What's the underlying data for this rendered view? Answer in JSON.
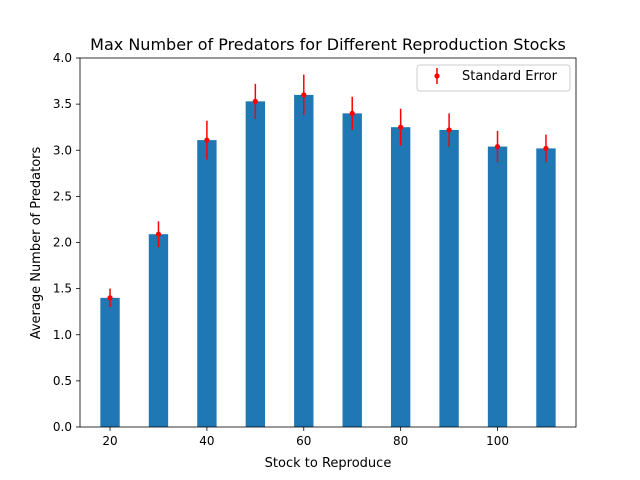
{
  "chart_data": {
    "type": "bar",
    "title": "Max Number of Predators for Different Reproduction Stocks",
    "xlabel": "Stock to Reproduce",
    "ylabel": "Average Number of Predators",
    "x": [
      20,
      30,
      40,
      50,
      60,
      70,
      80,
      90,
      100,
      110
    ],
    "values": [
      1.4,
      2.09,
      3.11,
      3.53,
      3.6,
      3.4,
      3.25,
      3.22,
      3.04,
      3.02
    ],
    "errors": [
      0.1,
      0.14,
      0.21,
      0.19,
      0.22,
      0.18,
      0.2,
      0.18,
      0.17,
      0.15
    ],
    "bar_width": 4,
    "xlim": [
      13.8,
      116.2
    ],
    "ylim": [
      0,
      4.0
    ],
    "xticks": [
      20,
      40,
      60,
      80,
      100
    ],
    "yticks": [
      0.0,
      0.5,
      1.0,
      1.5,
      2.0,
      2.5,
      3.0,
      3.5,
      4.0
    ],
    "xtick_labels": [
      "20",
      "40",
      "60",
      "80",
      "100"
    ],
    "ytick_labels": [
      "0.0",
      "0.5",
      "1.0",
      "1.5",
      "2.0",
      "2.5",
      "3.0",
      "3.5",
      "4.0"
    ],
    "grid": false,
    "legend": {
      "position": "top-right",
      "entries": [
        {
          "label": "Standard Error",
          "marker": "point-with-errorbar",
          "color": "#ff0000"
        }
      ]
    },
    "colors": {
      "bar": "#1f77b4",
      "error": "#ff0000",
      "axis": "#000000"
    }
  }
}
